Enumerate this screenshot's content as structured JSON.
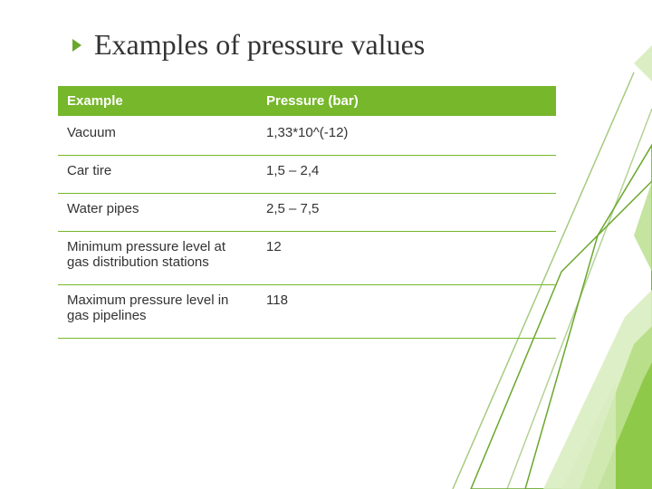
{
  "slide": {
    "title": "Examples of pressure values",
    "title_fontsize": 32,
    "title_color": "#333333",
    "bullet_color": "#6aa72c",
    "bullet_size": 10,
    "background_color": "#ffffff"
  },
  "table": {
    "type": "table",
    "columns": [
      "Example",
      "Pressure (bar)",
      ""
    ],
    "column_widths": [
      "40%",
      "40%",
      "20%"
    ],
    "header_bg": "#76b72b",
    "header_text_color": "#ffffff",
    "header_fontsize": 15,
    "body_fontsize": 15,
    "body_text_color": "#333333",
    "row_border_color": "#76b72b",
    "row_border_width": 1,
    "col1_alignment": "left",
    "col2_alignment": "left",
    "rows": [
      [
        "Vacuum",
        "1,33*10^(-12)",
        ""
      ],
      [
        "Car tire",
        "1,5 – 2,4",
        ""
      ],
      [
        "Water pipes",
        "2,5 – 7,5",
        ""
      ],
      [
        "Minimum pressure level at gas distribution stations",
        "12",
        ""
      ],
      [
        "Maximum pressure level in gas pipelines",
        "118",
        ""
      ]
    ]
  },
  "decor": {
    "leaf_fill": "#8fc94a",
    "leaf_fill_light": "#b7dd88",
    "leaf_fill_pale": "#d9edc0",
    "leaf_outline": "#6aa72c",
    "stroke_width": 1.5
  }
}
